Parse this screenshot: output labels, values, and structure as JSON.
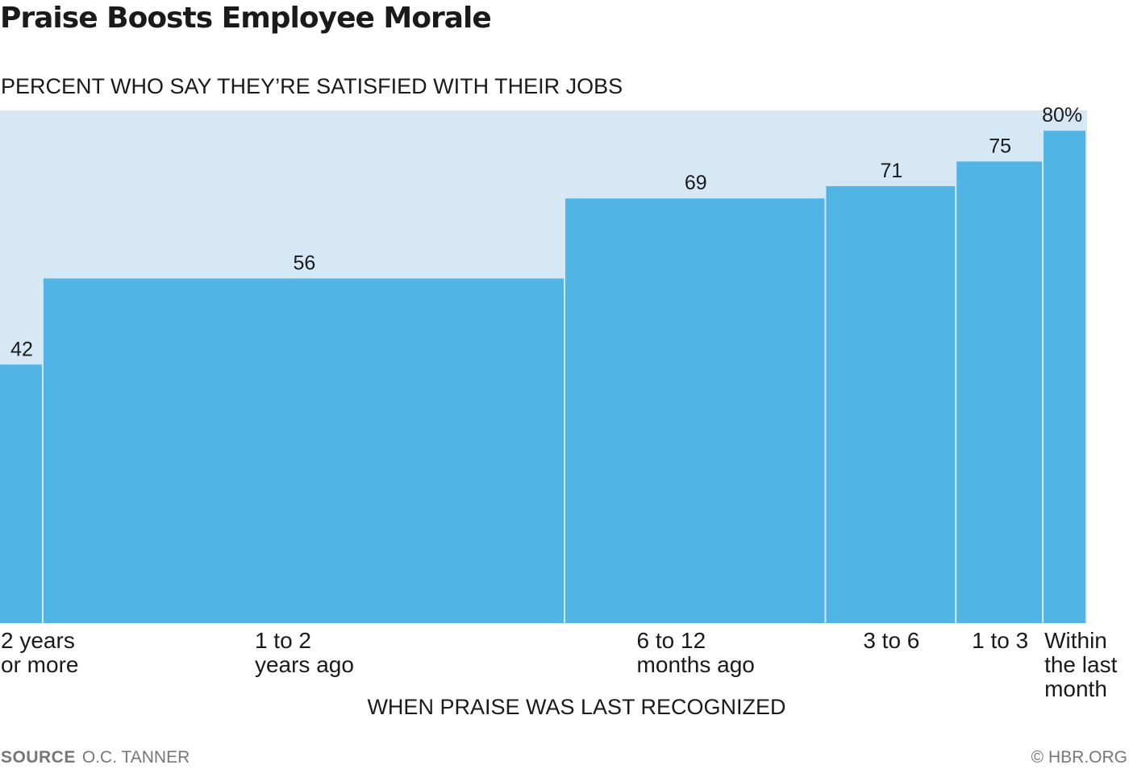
{
  "chart_data": {
    "type": "bar",
    "title": "Praise Boosts Employee Morale",
    "subtitle": "PERCENT WHO SAY THEY’RE SATISFIED WITH THEIR JOBS",
    "xlabel": "WHEN PRAISE WAS LAST RECOGNIZED",
    "ylabel": "",
    "ylim": [
      0,
      100
    ],
    "grid": false,
    "categories": [
      "2 years\nor more",
      "1 to 2\nyears ago",
      "6 to 12\nmonths ago",
      "3 to 6",
      "1 to 3",
      "Within\nthe last\nmonth"
    ],
    "values": [
      42,
      56,
      69,
      71,
      75,
      80
    ],
    "value_labels": [
      "42",
      "56",
      "69",
      "71",
      "75",
      "80%"
    ],
    "relative_widths": [
      1,
      12,
      6,
      3,
      2,
      1
    ]
  },
  "colors": {
    "bar": "#50b4e5",
    "background_band": "#d6e8f6",
    "text": "#1a1a1a",
    "muted_text": "#777777"
  },
  "footer": {
    "source_label": "SOURCE",
    "source_text": "O.C. TANNER",
    "credit": "© HBR.ORG"
  }
}
